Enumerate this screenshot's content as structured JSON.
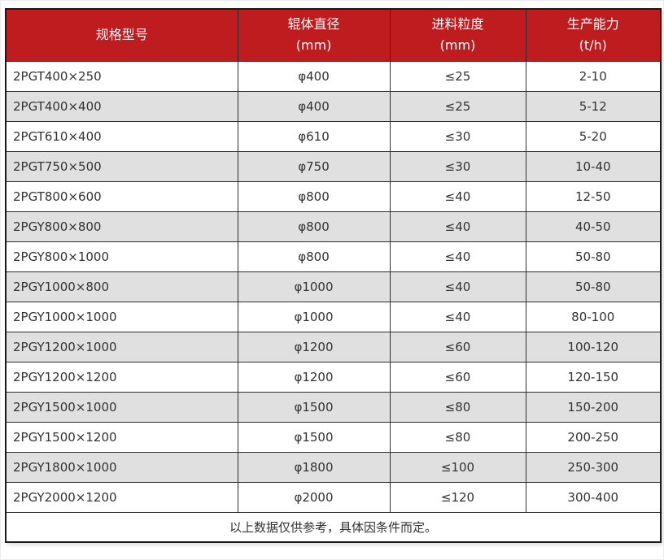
{
  "chart_data": {
    "type": "table",
    "header": {
      "columns": [
        {
          "label": "规格型号",
          "unit": ""
        },
        {
          "label": "辊体直径",
          "unit": "(mm)"
        },
        {
          "label": "进料粒度",
          "unit": "(mm)"
        },
        {
          "label": "生产能力",
          "unit": "(t/h)"
        }
      ]
    },
    "rows": [
      [
        "2PGT400×250",
        "φ400",
        "≤25",
        "2-10"
      ],
      [
        "2PGT400×400",
        "φ400",
        "≤25",
        "5-12"
      ],
      [
        "2PGT610×400",
        "φ610",
        "≤30",
        "5-20"
      ],
      [
        "2PGT750×500",
        "φ750",
        "≤30",
        "10-40"
      ],
      [
        "2PGT800×600",
        "φ800",
        "≤40",
        "12-50"
      ],
      [
        "2PGY800×800",
        "φ800",
        "≤40",
        "40-50"
      ],
      [
        "2PGY800×1000",
        "φ800",
        "≤40",
        "50-80"
      ],
      [
        "2PGY1000×800",
        "φ1000",
        "≤40",
        "50-80"
      ],
      [
        "2PGY1000×1000",
        "φ1000",
        "≤40",
        "80-100"
      ],
      [
        "2PGY1200×1000",
        "φ1200",
        "≤60",
        "100-120"
      ],
      [
        "2PGY1200×1200",
        "φ1200",
        "≤60",
        "120-150"
      ],
      [
        "2PGY1500×1000",
        "φ1500",
        "≤80",
        "150-200"
      ],
      [
        "2PGY1500×1200",
        "φ1500",
        "≤80",
        "200-250"
      ],
      [
        "2PGY1800×1000",
        "φ1800",
        "≤100",
        "250-300"
      ],
      [
        "2PGY2000×1200",
        "φ2000",
        "≤120",
        "300-400"
      ]
    ],
    "footnote": "以上数据仅供参考，具体因条件而定。"
  },
  "colors": {
    "header_bg": "#BE1C1F",
    "header_text": "#FFFFFF",
    "row_bg": "#FFFFFF",
    "row_alt_bg": "#E0E0E0",
    "body_text": "#333333",
    "border": "#2E2E2E"
  }
}
